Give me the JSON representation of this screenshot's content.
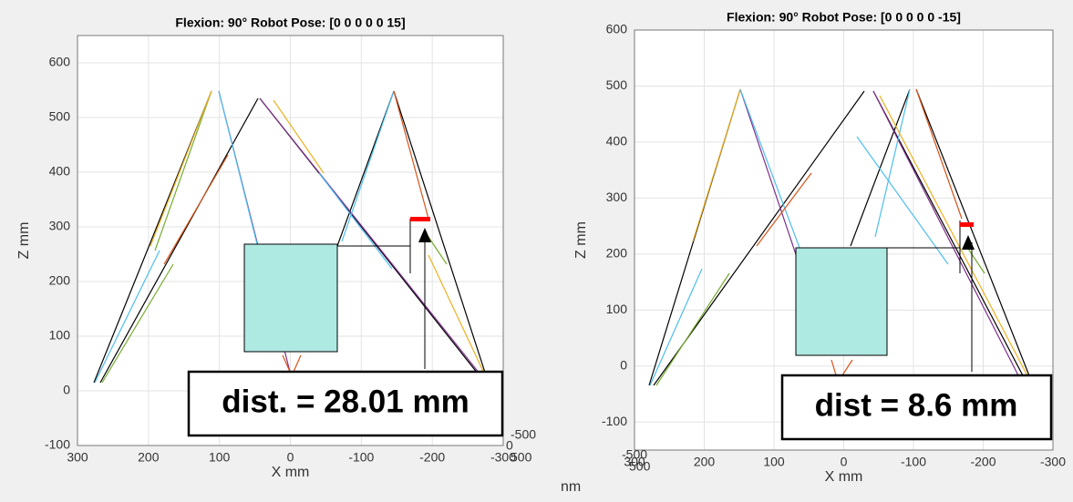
{
  "chart_data": [
    {
      "type": "axes3d",
      "title": "Flexion: 90° Robot Pose: [0 0 0 0 0 15]",
      "xlabel": "X mm",
      "ylabel": "Z mm",
      "xlim": [
        300,
        -300
      ],
      "ylim": [
        -100,
        650
      ],
      "xticks": [
        300,
        200,
        100,
        0,
        -100,
        -200,
        -300
      ],
      "yticks": [
        -100,
        0,
        100,
        200,
        300,
        400,
        500,
        600
      ],
      "grid": true,
      "depth_ticks": [
        "-500",
        "0",
        "500"
      ],
      "clipped_label": "nm",
      "annotation": "dist. = 28.01 mm"
    },
    {
      "type": "axes3d",
      "title": "Flexion: 90° Robot Pose: [0 0 0 0 0 -15]",
      "xlabel": "X mm",
      "ylabel": "Z mm",
      "xlim": [
        300,
        -300
      ],
      "ylim": [
        -150,
        600
      ],
      "xticks": [
        300,
        200,
        100,
        0,
        -100,
        -200,
        -300
      ],
      "yticks": [
        -100,
        0,
        100,
        200,
        300,
        400,
        500,
        600
      ],
      "grid": true,
      "depth_ticks": [
        "-500",
        "500"
      ],
      "annotation": "dist = 8.6 mm"
    }
  ]
}
